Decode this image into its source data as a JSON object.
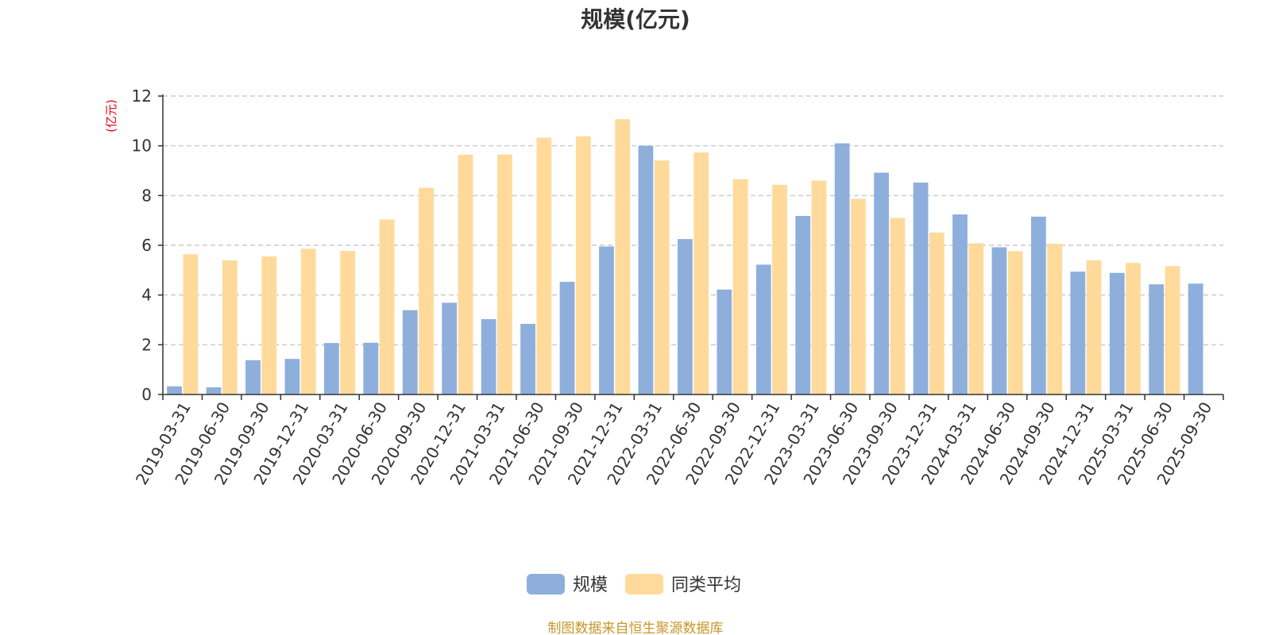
{
  "chart_data": {
    "type": "bar",
    "title": "规模(亿元)",
    "y_unit_label": "(亿元)",
    "ylim": [
      0,
      12
    ],
    "y_ticks": [
      0,
      2,
      4,
      6,
      8,
      10,
      12
    ],
    "grid": true,
    "legend_position": "bottom-center",
    "categories": [
      "2019-03-31",
      "2019-06-30",
      "2019-09-30",
      "2019-12-31",
      "2020-03-31",
      "2020-06-30",
      "2020-09-30",
      "2020-12-31",
      "2021-03-31",
      "2021-06-30",
      "2021-09-30",
      "2021-12-31",
      "2022-03-31",
      "2022-06-30",
      "2022-09-30",
      "2022-12-31",
      "2023-03-31",
      "2023-06-30",
      "2023-09-30",
      "2023-12-31",
      "2024-03-31",
      "2024-06-30",
      "2024-09-30",
      "2024-12-31",
      "2025-03-31",
      "2025-06-30",
      "2025-09-30"
    ],
    "series": [
      {
        "name": "规模",
        "color": "#8eafdc",
        "values": [
          0.33,
          0.29,
          1.38,
          1.43,
          2.07,
          2.08,
          3.39,
          3.69,
          3.03,
          2.84,
          4.53,
          5.95,
          10.0,
          6.25,
          4.22,
          5.22,
          7.18,
          10.1,
          8.92,
          8.52,
          7.24,
          5.92,
          7.15,
          4.94,
          4.89,
          4.43,
          4.46
        ]
      },
      {
        "name": "同类平均",
        "color": "#ffda9b",
        "values": [
          5.64,
          5.4,
          5.55,
          5.86,
          5.77,
          7.04,
          8.31,
          9.64,
          9.65,
          10.33,
          10.38,
          11.07,
          9.41,
          9.73,
          8.66,
          8.43,
          8.6,
          7.87,
          7.1,
          6.51,
          6.08,
          5.76,
          6.06,
          5.4,
          5.29,
          5.16,
          null
        ]
      }
    ],
    "source": "制图数据来自恒生聚源数据库"
  }
}
